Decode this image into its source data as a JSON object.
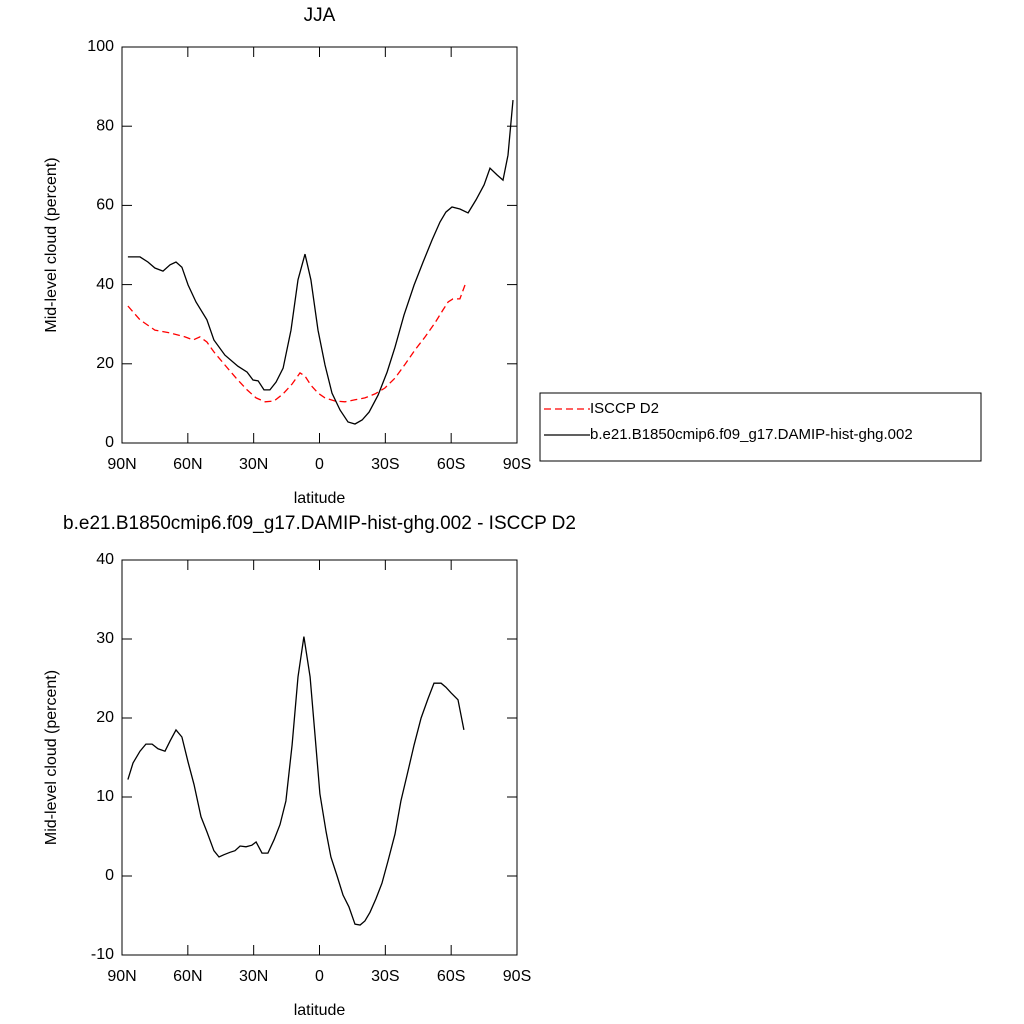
{
  "chart_data": [
    {
      "type": "line",
      "title": "JJA",
      "xlabel": "latitude",
      "ylabel": "Mid-level cloud (percent)",
      "xlim": [
        90,
        -90
      ],
      "xticks": [
        {
          "value": 90,
          "label": "90N"
        },
        {
          "value": 60,
          "label": "60N"
        },
        {
          "value": 30,
          "label": "30N"
        },
        0,
        {
          "value": -30,
          "label": "30S"
        },
        {
          "value": -60,
          "label": "60S"
        },
        {
          "value": -90,
          "label": "90S"
        }
      ],
      "ylim": [
        0,
        100
      ],
      "yticks": [
        0,
        20,
        40,
        60,
        80,
        100
      ],
      "legend": "right",
      "series": [
        {
          "name": "ISCCP D2",
          "color": "#ff0000",
          "line_style": "dashed",
          "x": [
            87.3,
            81.8,
            75.0,
            68.1,
            61.3,
            57.6,
            54.5,
            51.3,
            48.1,
            43.1,
            38.0,
            33.0,
            28.9,
            24.8,
            20.7,
            16.6,
            12.5,
            8.9,
            6.6,
            3.9,
            0.7,
            -2.5,
            -7.0,
            -11.6,
            -16.2,
            -20.7,
            -25.3,
            -29.8,
            -34.4,
            -39.0,
            -43.5,
            -48.1,
            -52.6,
            -56.3,
            -58.6,
            -60.8,
            -64.0,
            -66.3
          ],
          "values": [
            34.6,
            31.1,
            28.5,
            27.8,
            26.8,
            26.0,
            26.8,
            25.5,
            23.0,
            19.7,
            16.4,
            13.4,
            11.4,
            10.4,
            10.6,
            12.4,
            14.9,
            17.7,
            16.9,
            14.6,
            12.6,
            11.4,
            10.6,
            10.4,
            10.9,
            11.4,
            12.4,
            13.9,
            16.4,
            19.9,
            23.5,
            26.8,
            30.3,
            33.6,
            35.6,
            36.4,
            36.4,
            39.9
          ]
        },
        {
          "name": "b.e21.B1850cmip6.f09_g17.DAMIP-hist-ghg.002",
          "color": "#000000",
          "line_style": "solid",
          "x": [
            87.3,
            81.8,
            78.2,
            75.0,
            71.3,
            68.1,
            65.4,
            62.7,
            59.9,
            56.3,
            51.3,
            48.1,
            43.1,
            37.2,
            33.0,
            30.3,
            28.0,
            25.3,
            22.6,
            19.8,
            16.6,
            13.0,
            9.8,
            6.6,
            3.9,
            0.7,
            -2.5,
            -5.7,
            -9.4,
            -13.0,
            -16.2,
            -19.4,
            -22.6,
            -26.7,
            -30.8,
            -34.4,
            -38.5,
            -43.1,
            -47.2,
            -51.3,
            -54.9,
            -57.6,
            -60.4,
            -64.0,
            -67.7,
            -71.3,
            -75.0,
            -77.7,
            -80.9,
            -83.6,
            -85.9,
            -88.2
          ],
          "values": [
            47.0,
            47.0,
            45.7,
            44.2,
            43.4,
            45.0,
            45.7,
            44.4,
            39.9,
            35.6,
            31.1,
            26.0,
            22.2,
            19.4,
            17.9,
            15.9,
            15.7,
            13.4,
            13.4,
            15.4,
            18.9,
            28.5,
            41.2,
            47.7,
            41.2,
            28.5,
            19.7,
            12.6,
            8.3,
            5.3,
            4.8,
            5.8,
            7.8,
            12.1,
            17.9,
            24.2,
            32.3,
            39.9,
            45.7,
            51.3,
            55.8,
            58.3,
            59.6,
            59.1,
            58.1,
            61.4,
            65.2,
            69.4,
            67.7,
            66.4,
            72.7,
            86.6
          ]
        }
      ]
    },
    {
      "type": "line",
      "title": "b.e21.B1850cmip6.f09_g17.DAMIP-hist-ghg.002 - ISCCP D2",
      "xlabel": "latitude",
      "ylabel": "Mid-level cloud (percent)",
      "xlim": [
        90,
        -90
      ],
      "xticks": [
        {
          "value": 90,
          "label": "90N"
        },
        {
          "value": 60,
          "label": "60N"
        },
        {
          "value": 30,
          "label": "30N"
        },
        0,
        {
          "value": -30,
          "label": "30S"
        },
        {
          "value": -60,
          "label": "60S"
        },
        {
          "value": -90,
          "label": "90S"
        }
      ],
      "ylim": [
        -10,
        40
      ],
      "yticks": [
        -10,
        0,
        10,
        20,
        30,
        40
      ],
      "color": "#000000",
      "x": [
        87.3,
        85.0,
        81.8,
        79.1,
        76.3,
        73.6,
        70.4,
        68.1,
        65.4,
        62.7,
        59.9,
        57.2,
        54.0,
        51.3,
        48.1,
        45.8,
        43.5,
        40.8,
        38.5,
        36.2,
        33.5,
        30.8,
        28.9,
        26.2,
        23.5,
        20.7,
        18.0,
        15.3,
        12.5,
        9.8,
        7.1,
        4.3,
        2.0,
        -0.2,
        -3.0,
        -5.2,
        -8.0,
        -10.7,
        -13.4,
        -16.2,
        -18.5,
        -20.7,
        -23.0,
        -25.7,
        -28.5,
        -31.2,
        -34.4,
        -37.1,
        -39.9,
        -43.1,
        -46.3,
        -49.4,
        -52.2,
        -55.4,
        -57.6,
        -59.9,
        -63.1,
        -65.8
      ],
      "values": [
        12.2,
        14.3,
        15.8,
        16.7,
        16.7,
        16.1,
        15.8,
        17.1,
        18.5,
        17.6,
        14.4,
        11.6,
        7.5,
        5.6,
        3.2,
        2.4,
        2.7,
        3.0,
        3.2,
        3.8,
        3.7,
        3.9,
        4.3,
        2.9,
        2.9,
        4.6,
        6.5,
        9.5,
        16.6,
        25.2,
        30.3,
        25.2,
        17.7,
        10.4,
        5.6,
        2.4,
        0.0,
        -2.4,
        -3.9,
        -6.1,
        -6.2,
        -5.7,
        -4.6,
        -2.9,
        -0.9,
        1.9,
        5.3,
        9.5,
        12.8,
        16.6,
        20.0,
        22.4,
        24.4,
        24.4,
        23.9,
        23.2,
        22.3,
        18.5
      ]
    }
  ]
}
